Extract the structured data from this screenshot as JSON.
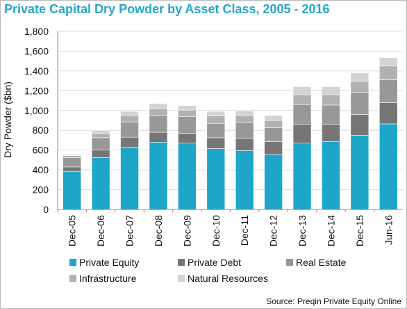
{
  "title": "Private Capital Dry Powder by Asset Class, 2005 - 2016",
  "source": "Source: Preqin Private Equity Online",
  "chart_data": {
    "type": "bar",
    "stacked": true,
    "title": "Private Capital Dry Powder by Asset Class, 2005 - 2016",
    "xlabel": "",
    "ylabel": "Dry Powder ($bn)",
    "ylim": [
      0,
      1800
    ],
    "yticks": [
      0,
      200,
      400,
      600,
      800,
      1000,
      1200,
      1400,
      1600,
      1800
    ],
    "ytick_labels": [
      "0",
      "200",
      "400",
      "600",
      "800",
      "1,000",
      "1,200",
      "1,400",
      "1,600",
      "1,800"
    ],
    "grid": true,
    "legend_position": "bottom",
    "categories": [
      "Dec-05",
      "Dec-06",
      "Dec-07",
      "Dec-08",
      "Dec-09",
      "Dec-10",
      "Dec-11",
      "Dec-12",
      "Dec-13",
      "Dec-14",
      "Dec-15",
      "Jun-16"
    ],
    "series": [
      {
        "name": "Private Equity",
        "color": "#1ea6c8",
        "values": [
          385,
          525,
          630,
          680,
          670,
          615,
          595,
          555,
          670,
          685,
          750,
          865
        ]
      },
      {
        "name": "Private Debt",
        "color": "#767676",
        "values": [
          45,
          75,
          100,
          100,
          100,
          110,
          125,
          130,
          190,
          175,
          210,
          215
        ]
      },
      {
        "name": "Real Estate",
        "color": "#989898",
        "values": [
          95,
          125,
          155,
          165,
          170,
          145,
          160,
          140,
          200,
          195,
          225,
          230
        ]
      },
      {
        "name": "Infrastructure",
        "color": "#b1b1b1",
        "values": [
          20,
          45,
          65,
          75,
          65,
          75,
          70,
          75,
          100,
          105,
          110,
          140
        ]
      },
      {
        "name": "Natural Resources",
        "color": "#d3d3d3",
        "values": [
          10,
          30,
          40,
          50,
          45,
          45,
          45,
          50,
          80,
          80,
          85,
          85
        ]
      }
    ]
  }
}
